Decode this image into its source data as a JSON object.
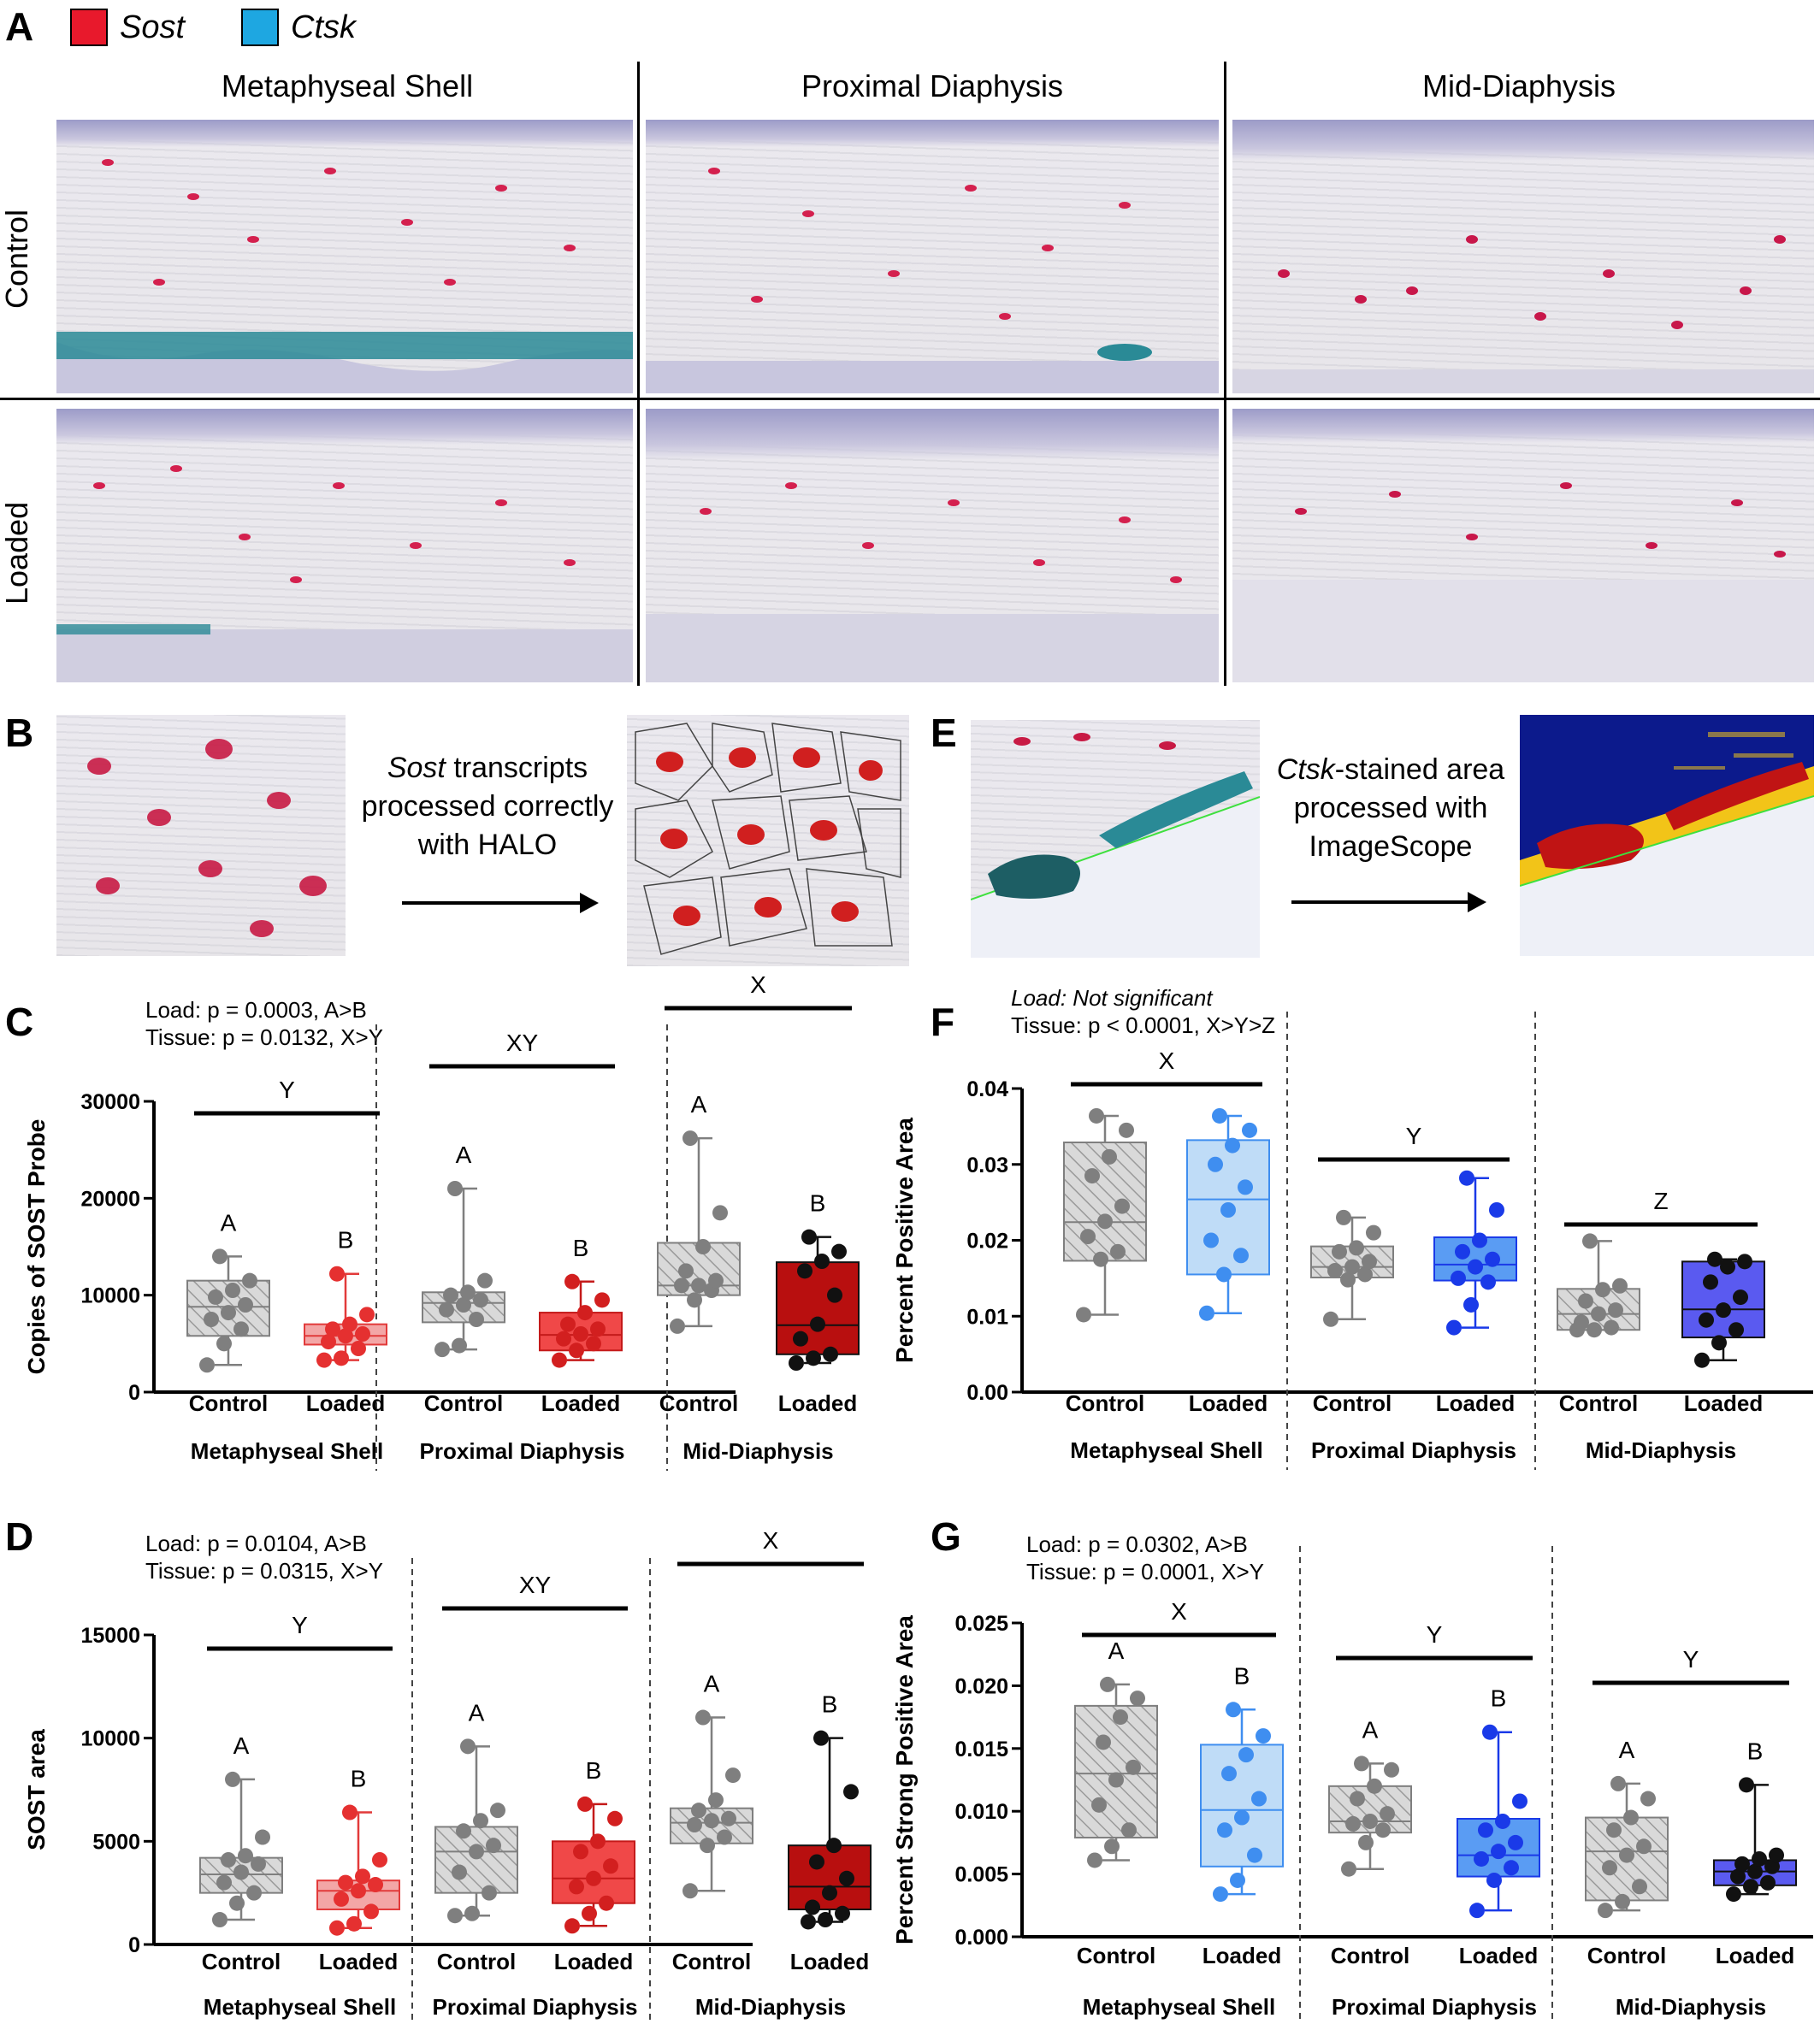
{
  "panel_letters": {
    "a": "A",
    "b": "B",
    "c": "C",
    "d": "D",
    "e": "E",
    "f": "F",
    "g": "G"
  },
  "legend": {
    "items": [
      {
        "label": "Sost",
        "color": "#e8192c"
      },
      {
        "label": "Ctsk",
        "color": "#1ea7e1"
      }
    ]
  },
  "panel_a": {
    "columns": [
      "Metaphyseal Shell",
      "Proximal Diaphysis",
      "Mid-Diaphysis"
    ],
    "rows": [
      "Control",
      "Loaded"
    ]
  },
  "panel_b": {
    "text_italic": "Sost",
    "text_rest_1": " transcripts",
    "text_line2": "processed correctly",
    "text_line3": "with HALO"
  },
  "panel_e": {
    "text_italic": "Ctsk",
    "text_rest_1": "-stained area",
    "text_line2": "processed with",
    "text_line3": "ImageScope"
  },
  "colors": {
    "control_fill": "#d9d9d9",
    "control_stroke": "#7f7f7f",
    "control_point": "#7f7f7f",
    "sost_light": "#f3a6a6",
    "sost_mid": "#f04848",
    "sost_dark": "#b80f0f",
    "sost_point": "#e53030",
    "sost_dark_point": "#111111",
    "ctsk_light": "#bfdcf7",
    "ctsk_mid": "#5a9cf3",
    "ctsk_dark": "#5a5af0",
    "ctsk_point": "#3f8ef0",
    "ctsk_mid_point": "#1a3ae8",
    "ctsk_dark_point": "#111111"
  },
  "chart_data": [
    {
      "id": "C",
      "type": "box",
      "ylabel": "Copies of SOST Probe",
      "ylim": [
        0,
        30000
      ],
      "yticks": [
        "0",
        "10000",
        "20000",
        "30000"
      ],
      "stats": [
        "Load: p = 0.0003, A>B",
        "Tissue: p = 0.0132, X>Y"
      ],
      "groups": [
        "Metaphyseal Shell",
        "Proximal  Diaphysis",
        "Mid-Diaphysis"
      ],
      "group_letters": [
        "Y",
        "XY",
        "X"
      ],
      "categories": [
        "Control",
        "Loaded",
        "Control",
        "Loaded",
        "Control",
        "Loaded"
      ],
      "box_letters": [
        "A",
        "B",
        "A",
        "B",
        "A",
        "B"
      ],
      "boxes": [
        {
          "min": 2800,
          "q1": 5800,
          "median": 8800,
          "q3": 11500,
          "max": 14000,
          "fill": "control",
          "points": [
            2800,
            5000,
            6500,
            7500,
            8200,
            9000,
            9800,
            10500,
            11500,
            14000
          ]
        },
        {
          "min": 3300,
          "q1": 4900,
          "median": 5800,
          "q3": 7000,
          "max": 12200,
          "fill": "sost_light",
          "points": [
            3300,
            3500,
            4500,
            5200,
            5800,
            6000,
            6500,
            7000,
            8000,
            12200
          ]
        },
        {
          "min": 4400,
          "q1": 7200,
          "median": 9200,
          "q3": 10300,
          "max": 21000,
          "fill": "control",
          "points": [
            4400,
            4800,
            7500,
            8500,
            9000,
            9500,
            10000,
            10300,
            11500,
            21000
          ]
        },
        {
          "min": 3300,
          "q1": 4300,
          "median": 5900,
          "q3": 8200,
          "max": 11400,
          "fill": "sost_mid",
          "points": [
            3300,
            4300,
            5000,
            5500,
            6000,
            6500,
            7000,
            8200,
            9500,
            11400
          ]
        },
        {
          "min": 6800,
          "q1": 10000,
          "median": 11000,
          "q3": 15400,
          "max": 26200,
          "fill": "control",
          "points": [
            6800,
            9500,
            10500,
            11000,
            11000,
            11500,
            12500,
            15000,
            18500,
            26200
          ]
        },
        {
          "min": 3000,
          "q1": 3900,
          "median": 6900,
          "q3": 13400,
          "max": 16000,
          "fill": "sost_dark",
          "points": [
            3000,
            3500,
            3900,
            5500,
            7000,
            10000,
            12500,
            13500,
            14500,
            16000
          ]
        }
      ]
    },
    {
      "id": "D",
      "type": "box",
      "ylabel": "SOST area",
      "ylim": [
        0,
        15000
      ],
      "yticks": [
        "0",
        "5000",
        "10000",
        "15000"
      ],
      "stats": [
        "Load: p = 0.0104, A>B",
        "Tissue: p = 0.0315, X>Y"
      ],
      "groups": [
        "Metaphyseal Shell",
        "Proximal  Diaphysis",
        "Mid-Diaphysis"
      ],
      "group_letters": [
        "Y",
        "XY",
        "X"
      ],
      "categories": [
        "Control",
        "Loaded",
        "Control",
        "Loaded",
        "Control",
        "Loaded"
      ],
      "box_letters": [
        "A",
        "B",
        "A",
        "B",
        "A",
        "B"
      ],
      "boxes": [
        {
          "min": 1200,
          "q1": 2500,
          "median": 3400,
          "q3": 4200,
          "max": 8000,
          "fill": "control",
          "points": [
            1200,
            2000,
            2500,
            3000,
            3500,
            3900,
            4100,
            4300,
            5200,
            8000
          ]
        },
        {
          "min": 800,
          "q1": 1700,
          "median": 2600,
          "q3": 3100,
          "max": 6400,
          "fill": "sost_light",
          "points": [
            800,
            1000,
            1600,
            2200,
            2600,
            2900,
            3000,
            3300,
            4100,
            6400
          ]
        },
        {
          "min": 1400,
          "q1": 2500,
          "median": 4500,
          "q3": 5700,
          "max": 9600,
          "fill": "control",
          "points": [
            1400,
            1500,
            2500,
            3500,
            4500,
            4800,
            5500,
            6000,
            6500,
            9600
          ]
        },
        {
          "min": 900,
          "q1": 2000,
          "median": 3200,
          "q3": 5000,
          "max": 6800,
          "fill": "sost_mid",
          "points": [
            900,
            1500,
            2000,
            2800,
            3200,
            3800,
            4500,
            5000,
            6100,
            6800
          ]
        },
        {
          "min": 2600,
          "q1": 4900,
          "median": 5900,
          "q3": 6600,
          "max": 11000,
          "fill": "control",
          "points": [
            2600,
            4800,
            5200,
            5800,
            6000,
            6100,
            6500,
            7000,
            8200,
            11000
          ]
        },
        {
          "min": 1100,
          "q1": 1700,
          "median": 2800,
          "q3": 4800,
          "max": 10000,
          "fill": "sost_dark",
          "points": [
            1100,
            1200,
            1500,
            1800,
            2500,
            3200,
            4000,
            4800,
            7400,
            10000
          ]
        }
      ]
    },
    {
      "id": "F",
      "type": "box",
      "ylabel": "Percent Positive Area",
      "ylim": [
        0,
        0.04
      ],
      "yticks": [
        "0.00",
        "0.01",
        "0.02",
        "0.03",
        "0.04"
      ],
      "stats_italic": "Load: Not significant",
      "stats": [
        "Tissue: p < 0.0001, X>Y>Z"
      ],
      "groups": [
        "Metaphyseal Shell",
        "Proximal  Diaphysis",
        "Mid-Diaphysis"
      ],
      "group_letters": [
        "X",
        "Y",
        "Z"
      ],
      "categories": [
        "Control",
        "Loaded",
        "Control",
        "Loaded",
        "Control",
        "Loaded"
      ],
      "box_letters": [
        "",
        "",
        "",
        "",
        "",
        ""
      ],
      "boxes": [
        {
          "min": 0.0102,
          "q1": 0.0173,
          "median": 0.0224,
          "q3": 0.0329,
          "max": 0.0364,
          "fill": "control",
          "points": [
            0.0102,
            0.0175,
            0.0185,
            0.0205,
            0.0225,
            0.0245,
            0.0285,
            0.031,
            0.0345,
            0.0364
          ]
        },
        {
          "min": 0.0104,
          "q1": 0.0155,
          "median": 0.0254,
          "q3": 0.0332,
          "max": 0.0364,
          "fill": "ctsk_light",
          "points": [
            0.0104,
            0.0155,
            0.018,
            0.02,
            0.024,
            0.027,
            0.03,
            0.0325,
            0.0345,
            0.0364
          ]
        },
        {
          "min": 0.0096,
          "q1": 0.0151,
          "median": 0.0165,
          "q3": 0.0192,
          "max": 0.023,
          "fill": "control",
          "points": [
            0.0096,
            0.0148,
            0.0155,
            0.016,
            0.0165,
            0.0172,
            0.0185,
            0.019,
            0.021,
            0.023
          ]
        },
        {
          "min": 0.0085,
          "q1": 0.0147,
          "median": 0.0168,
          "q3": 0.0204,
          "max": 0.0282,
          "fill": "ctsk_mid",
          "points": [
            0.0085,
            0.0115,
            0.0145,
            0.015,
            0.0165,
            0.0175,
            0.0185,
            0.02,
            0.024,
            0.0282
          ]
        },
        {
          "min": 0.0082,
          "q1": 0.0082,
          "median": 0.0103,
          "q3": 0.0136,
          "max": 0.0199,
          "fill": "control",
          "points": [
            0.0082,
            0.0082,
            0.0085,
            0.0092,
            0.0103,
            0.0108,
            0.012,
            0.0135,
            0.014,
            0.0199
          ]
        },
        {
          "min": 0.0042,
          "q1": 0.0072,
          "median": 0.0109,
          "q3": 0.0172,
          "max": 0.0175,
          "fill": "ctsk_dark",
          "points": [
            0.0042,
            0.0065,
            0.0082,
            0.0095,
            0.0108,
            0.0125,
            0.0145,
            0.0165,
            0.0172,
            0.0175
          ]
        }
      ]
    },
    {
      "id": "G",
      "type": "box",
      "ylabel": "Percent Strong Positive  Area",
      "ylim": [
        0,
        0.025
      ],
      "yticks": [
        "0.000",
        "0.005",
        "0.010",
        "0.015",
        "0.020",
        "0.025"
      ],
      "stats": [
        "Load: p = 0.0302, A>B",
        "Tissue: p = 0.0001, X>Y"
      ],
      "groups": [
        "Metaphyseal Shell",
        "Proximal  Diaphysis",
        "Mid-Diaphysis"
      ],
      "group_letters": [
        "X",
        "Y",
        "Y"
      ],
      "categories": [
        "Control",
        "Loaded",
        "Control",
        "Loaded",
        "Control",
        "Loaded"
      ],
      "box_letters": [
        "A",
        "B",
        "A",
        "B",
        "A",
        "B"
      ],
      "boxes": [
        {
          "min": 0.0061,
          "q1": 0.0079,
          "median": 0.013,
          "q3": 0.0184,
          "max": 0.0201,
          "fill": "control",
          "points": [
            0.0061,
            0.0072,
            0.0085,
            0.0105,
            0.0125,
            0.0135,
            0.0155,
            0.0175,
            0.019,
            0.0201
          ]
        },
        {
          "min": 0.0034,
          "q1": 0.0056,
          "median": 0.0101,
          "q3": 0.0153,
          "max": 0.0181,
          "fill": "ctsk_light",
          "points": [
            0.0034,
            0.0045,
            0.0065,
            0.0085,
            0.0095,
            0.011,
            0.013,
            0.0145,
            0.016,
            0.0181
          ]
        },
        {
          "min": 0.0054,
          "q1": 0.0083,
          "median": 0.0092,
          "q3": 0.012,
          "max": 0.0138,
          "fill": "control",
          "points": [
            0.0054,
            0.0075,
            0.0085,
            0.009,
            0.0092,
            0.0098,
            0.011,
            0.012,
            0.0133,
            0.0138
          ]
        },
        {
          "min": 0.0021,
          "q1": 0.0048,
          "median": 0.0065,
          "q3": 0.0094,
          "max": 0.0163,
          "fill": "ctsk_mid",
          "points": [
            0.0021,
            0.0045,
            0.0055,
            0.0062,
            0.0068,
            0.0075,
            0.0085,
            0.0092,
            0.0108,
            0.0163
          ]
        },
        {
          "min": 0.0021,
          "q1": 0.0029,
          "median": 0.0068,
          "q3": 0.0095,
          "max": 0.0122,
          "fill": "control",
          "points": [
            0.0021,
            0.0028,
            0.004,
            0.0055,
            0.0065,
            0.0072,
            0.0085,
            0.0095,
            0.011,
            0.0122
          ]
        },
        {
          "min": 0.0034,
          "q1": 0.0041,
          "median": 0.0052,
          "q3": 0.0061,
          "max": 0.0121,
          "fill": "ctsk_dark",
          "points": [
            0.0034,
            0.004,
            0.0043,
            0.0048,
            0.0052,
            0.0056,
            0.0058,
            0.0062,
            0.0065,
            0.0121
          ]
        }
      ]
    }
  ]
}
